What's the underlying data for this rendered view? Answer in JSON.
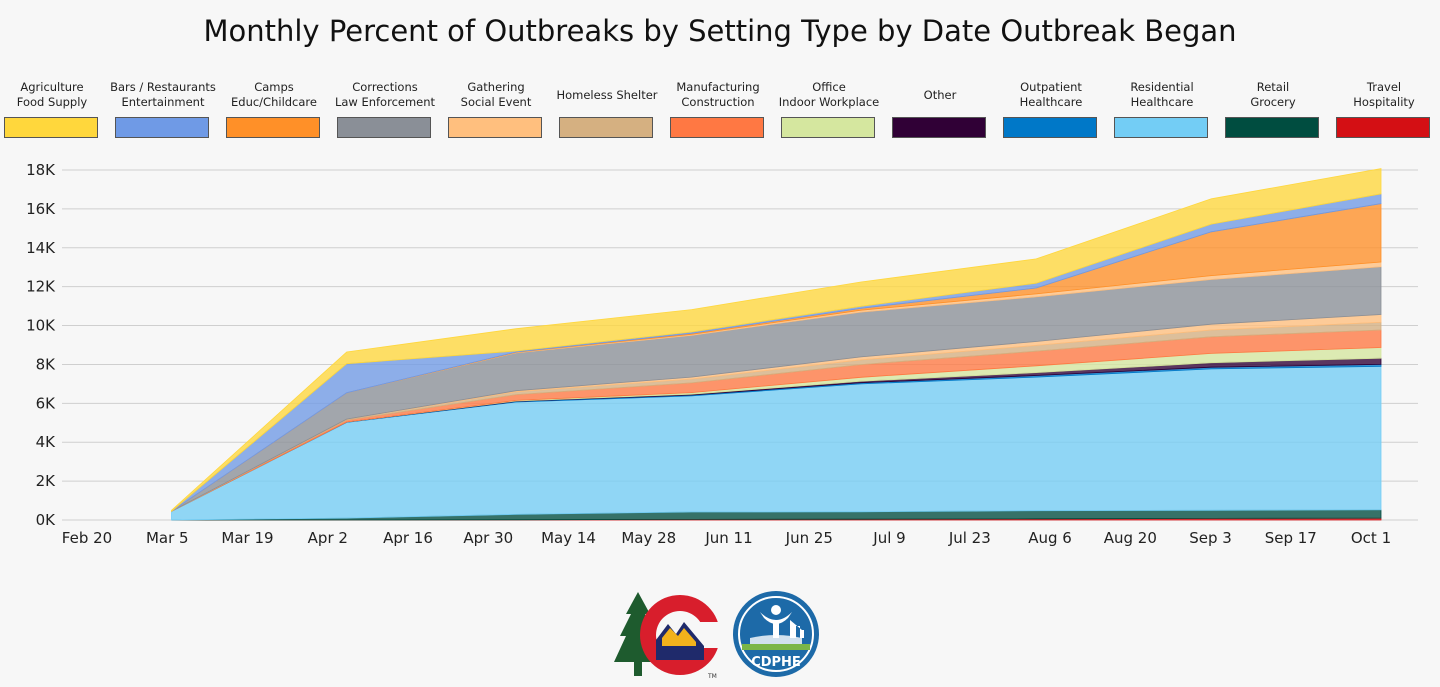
{
  "chart_data": {
    "type": "area",
    "stacked": true,
    "title": "Monthly Percent of Outbreaks by Setting Type by Date Outbreak Began",
    "xlabel": "",
    "ylabel": "",
    "ylim": [
      0,
      18000
    ],
    "y_ticks": [
      0,
      2000,
      4000,
      6000,
      8000,
      10000,
      12000,
      14000,
      16000,
      18000
    ],
    "y_tick_labels": [
      "0K",
      "2K",
      "4K",
      "6K",
      "8K",
      "10K",
      "12K",
      "14K",
      "16K",
      "18K"
    ],
    "x_tick_labels": [
      "Feb 20",
      "Mar 5",
      "Mar 19",
      "Apr 2",
      "Apr 16",
      "Apr 30",
      "May 14",
      "May 28",
      "Jun 11",
      "Jun 25",
      "Jul 9",
      "Jul 23",
      "Aug 6",
      "Aug 20",
      "Sep 3",
      "Sep 17",
      "Oct 1"
    ],
    "x_tick_days": [
      0,
      14,
      28,
      42,
      56,
      70,
      84,
      98,
      112,
      126,
      140,
      154,
      168,
      182,
      196,
      210,
      224
    ],
    "x_range_days": [
      0,
      224
    ],
    "x_days": [
      10,
      41,
      71,
      102,
      132,
      163,
      194,
      224
    ],
    "x_dates": [
      "Mar 1",
      "Apr 1",
      "May 1",
      "Jun 1",
      "Jul 1",
      "Aug 1",
      "Sep 1",
      "Oct 1"
    ],
    "legend_position": "top",
    "grid": true,
    "series": [
      {
        "name": "Travel\nHospitality",
        "color": "#d40f14",
        "values": [
          0,
          0,
          10,
          30,
          40,
          60,
          80,
          100
        ]
      },
      {
        "name": "Retail\nGrocery",
        "color": "#004d40",
        "values": [
          0,
          100,
          280,
          380,
          380,
          420,
          420,
          420
        ]
      },
      {
        "name": "Residential\nHealthcare",
        "color": "#73cdf5",
        "values": [
          450,
          4920,
          5780,
          5970,
          6580,
          6870,
          7270,
          7380
        ]
      },
      {
        "name": "Outpatient\nHealthcare",
        "color": "#0078c8",
        "values": [
          0,
          20,
          30,
          50,
          60,
          80,
          90,
          100
        ]
      },
      {
        "name": "Other",
        "color": "#300036",
        "values": [
          0,
          0,
          20,
          40,
          80,
          150,
          230,
          320
        ]
      },
      {
        "name": "Office\nIndoor Workplace",
        "color": "#d5e79f",
        "values": [
          0,
          0,
          30,
          80,
          200,
          350,
          480,
          550
        ]
      },
      {
        "name": "Manufacturing\nConstruction",
        "color": "#ff7843",
        "values": [
          0,
          100,
          300,
          500,
          650,
          750,
          850,
          900
        ]
      },
      {
        "name": "Homeless Shelter",
        "color": "#d5b081",
        "values": [
          0,
          50,
          150,
          200,
          250,
          300,
          350,
          400
        ]
      },
      {
        "name": "Gathering\nSocial Event",
        "color": "#ffbf7e",
        "values": [
          0,
          0,
          50,
          100,
          150,
          200,
          300,
          400
        ]
      },
      {
        "name": "Corrections\nLaw Enforcement",
        "color": "#8a8f97",
        "values": [
          0,
          1350,
          1950,
          2150,
          2300,
          2300,
          2300,
          2450
        ]
      },
      {
        "name": "Gathering\nSocial Event",
        "color": "#ffbf7e",
        "values": [
          0,
          0,
          20,
          50,
          100,
          150,
          200,
          250
        ]
      },
      {
        "name": "Camps\nEduc/Childcare",
        "color": "#ff9028",
        "values": [
          0,
          0,
          20,
          50,
          100,
          300,
          2250,
          3000
        ]
      },
      {
        "name": "Bars / Restaurants\nEntertainment",
        "color": "#6f9ae6",
        "values": [
          0,
          1500,
          50,
          70,
          100,
          250,
          400,
          500
        ]
      },
      {
        "name": "Agriculture\nFood Supply",
        "color": "#ffd73c",
        "values": [
          50,
          600,
          1150,
          1150,
          1250,
          1250,
          1300,
          1300
        ]
      }
    ],
    "legend": [
      {
        "name": "Agriculture\nFood Supply",
        "color": "#ffd73c"
      },
      {
        "name": "Bars / Restaurants\nEntertainment",
        "color": "#6f9ae6"
      },
      {
        "name": "Camps\nEduc/Childcare",
        "color": "#ff9028"
      },
      {
        "name": "Corrections\nLaw Enforcement",
        "color": "#8a8f97"
      },
      {
        "name": "Gathering\nSocial Event",
        "color": "#ffbf7e"
      },
      {
        "name": "Homeless Shelter",
        "color": "#d5b081"
      },
      {
        "name": "Manufacturing\nConstruction",
        "color": "#ff7843"
      },
      {
        "name": "Office\nIndoor Workplace",
        "color": "#d5e79f"
      },
      {
        "name": "Other",
        "color": "#300036"
      },
      {
        "name": "Outpatient\nHealthcare",
        "color": "#0078c8"
      },
      {
        "name": "Residential\nHealthcare",
        "color": "#73cdf5"
      },
      {
        "name": "Retail\nGrocery",
        "color": "#004d40"
      },
      {
        "name": "Travel\nHospitality",
        "color": "#d40f14"
      }
    ]
  },
  "logos": {
    "colorado_logo_text": "C",
    "colorado_trademark": "TM",
    "cdphe_text": "CDPHE"
  }
}
